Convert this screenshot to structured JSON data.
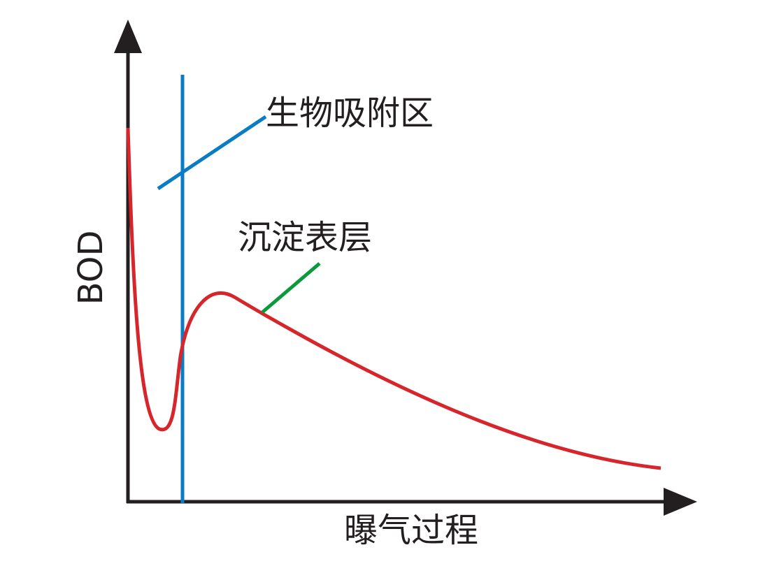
{
  "axes": {
    "y_label": "BOD",
    "x_label": "曝气过程"
  },
  "annotations": [
    {
      "label": "生物吸附区"
    },
    {
      "label": "沉淀表层"
    }
  ]
}
